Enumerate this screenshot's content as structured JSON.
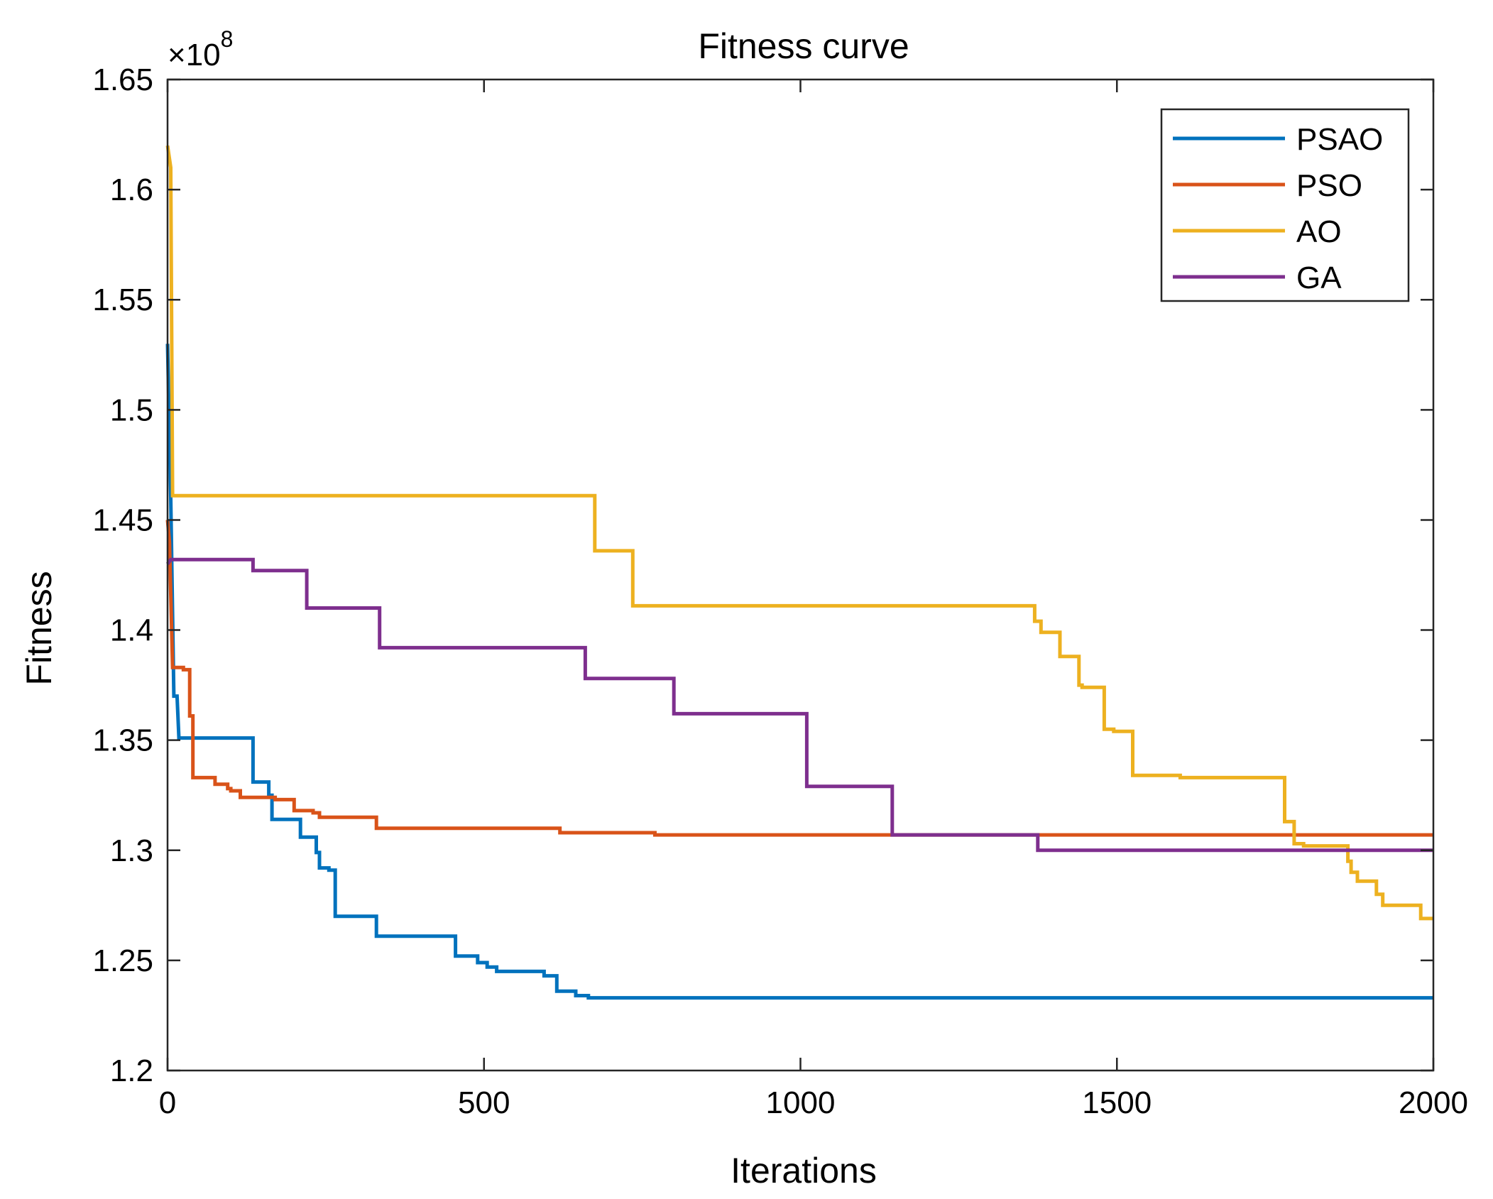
{
  "chart_data": {
    "type": "line",
    "title": "Fitness curve",
    "xlabel": "Iterations",
    "ylabel": "Fitness",
    "xlim": [
      0,
      2000
    ],
    "ylim": [
      1.2,
      1.65
    ],
    "y_multiplier": "×10",
    "y_exponent": "8",
    "xticks": [
      0,
      500,
      1000,
      1500,
      2000
    ],
    "xtick_labels": [
      "0",
      "500",
      "1000",
      "1500",
      "2000"
    ],
    "yticks": [
      1.2,
      1.25,
      1.3,
      1.35,
      1.4,
      1.45,
      1.5,
      1.55,
      1.6,
      1.65
    ],
    "ytick_labels": [
      "1.2",
      "1.25",
      "1.3",
      "1.35",
      "1.4",
      "1.45",
      "1.5",
      "1.55",
      "1.6",
      "1.65"
    ],
    "grid": false,
    "legend_position": "top-right",
    "series": [
      {
        "name": "PSAO",
        "color": "#0072BD",
        "points": [
          [
            0,
            1.53
          ],
          [
            5,
            1.46
          ],
          [
            10,
            1.37
          ],
          [
            15,
            1.37
          ],
          [
            18,
            1.351
          ],
          [
            135,
            1.351
          ],
          [
            135,
            1.331
          ],
          [
            160,
            1.331
          ],
          [
            160,
            1.325
          ],
          [
            165,
            1.325
          ],
          [
            165,
            1.314
          ],
          [
            210,
            1.314
          ],
          [
            210,
            1.306
          ],
          [
            235,
            1.306
          ],
          [
            235,
            1.299
          ],
          [
            240,
            1.299
          ],
          [
            240,
            1.292
          ],
          [
            255,
            1.292
          ],
          [
            255,
            1.291
          ],
          [
            265,
            1.291
          ],
          [
            265,
            1.27
          ],
          [
            330,
            1.27
          ],
          [
            330,
            1.261
          ],
          [
            455,
            1.261
          ],
          [
            455,
            1.252
          ],
          [
            490,
            1.252
          ],
          [
            490,
            1.249
          ],
          [
            505,
            1.249
          ],
          [
            505,
            1.247
          ],
          [
            520,
            1.247
          ],
          [
            520,
            1.245
          ],
          [
            595,
            1.245
          ],
          [
            595,
            1.243
          ],
          [
            615,
            1.243
          ],
          [
            615,
            1.236
          ],
          [
            645,
            1.236
          ],
          [
            645,
            1.234
          ],
          [
            665,
            1.234
          ],
          [
            665,
            1.233
          ],
          [
            2000,
            1.233
          ]
        ]
      },
      {
        "name": "PSO",
        "color": "#D95319",
        "points": [
          [
            0,
            1.45
          ],
          [
            3,
            1.44
          ],
          [
            8,
            1.383
          ],
          [
            25,
            1.383
          ],
          [
            25,
            1.382
          ],
          [
            35,
            1.382
          ],
          [
            35,
            1.361
          ],
          [
            40,
            1.361
          ],
          [
            40,
            1.333
          ],
          [
            75,
            1.333
          ],
          [
            75,
            1.33
          ],
          [
            95,
            1.33
          ],
          [
            95,
            1.328
          ],
          [
            100,
            1.328
          ],
          [
            100,
            1.327
          ],
          [
            115,
            1.327
          ],
          [
            115,
            1.324
          ],
          [
            170,
            1.324
          ],
          [
            170,
            1.323
          ],
          [
            200,
            1.323
          ],
          [
            200,
            1.318
          ],
          [
            230,
            1.318
          ],
          [
            230,
            1.317
          ],
          [
            240,
            1.317
          ],
          [
            240,
            1.315
          ],
          [
            330,
            1.315
          ],
          [
            330,
            1.31
          ],
          [
            620,
            1.31
          ],
          [
            620,
            1.308
          ],
          [
            770,
            1.308
          ],
          [
            770,
            1.307
          ],
          [
            2000,
            1.307
          ]
        ]
      },
      {
        "name": "AO",
        "color": "#EDB120",
        "points": [
          [
            0,
            1.62
          ],
          [
            5,
            1.61
          ],
          [
            8,
            1.461
          ],
          [
            675,
            1.461
          ],
          [
            675,
            1.436
          ],
          [
            735,
            1.436
          ],
          [
            735,
            1.411
          ],
          [
            1370,
            1.411
          ],
          [
            1370,
            1.404
          ],
          [
            1380,
            1.404
          ],
          [
            1380,
            1.399
          ],
          [
            1410,
            1.399
          ],
          [
            1410,
            1.388
          ],
          [
            1440,
            1.388
          ],
          [
            1440,
            1.375
          ],
          [
            1445,
            1.375
          ],
          [
            1445,
            1.374
          ],
          [
            1480,
            1.374
          ],
          [
            1480,
            1.355
          ],
          [
            1495,
            1.355
          ],
          [
            1495,
            1.354
          ],
          [
            1525,
            1.354
          ],
          [
            1525,
            1.334
          ],
          [
            1600,
            1.334
          ],
          [
            1600,
            1.333
          ],
          [
            1765,
            1.333
          ],
          [
            1765,
            1.313
          ],
          [
            1780,
            1.313
          ],
          [
            1780,
            1.303
          ],
          [
            1795,
            1.303
          ],
          [
            1795,
            1.302
          ],
          [
            1865,
            1.302
          ],
          [
            1865,
            1.295
          ],
          [
            1870,
            1.295
          ],
          [
            1870,
            1.29
          ],
          [
            1880,
            1.29
          ],
          [
            1880,
            1.286
          ],
          [
            1910,
            1.286
          ],
          [
            1910,
            1.28
          ],
          [
            1920,
            1.28
          ],
          [
            1920,
            1.275
          ],
          [
            1980,
            1.275
          ],
          [
            1980,
            1.269
          ],
          [
            2000,
            1.269
          ]
        ]
      },
      {
        "name": "GA",
        "color": "#7E2F8E",
        "points": [
          [
            0,
            1.43
          ],
          [
            5,
            1.432
          ],
          [
            135,
            1.432
          ],
          [
            135,
            1.427
          ],
          [
            220,
            1.427
          ],
          [
            220,
            1.41
          ],
          [
            335,
            1.41
          ],
          [
            335,
            1.392
          ],
          [
            660,
            1.392
          ],
          [
            660,
            1.378
          ],
          [
            800,
            1.378
          ],
          [
            800,
            1.362
          ],
          [
            1010,
            1.362
          ],
          [
            1010,
            1.329
          ],
          [
            1145,
            1.329
          ],
          [
            1145,
            1.307
          ],
          [
            1375,
            1.307
          ],
          [
            1375,
            1.3
          ],
          [
            2000,
            1.3
          ]
        ]
      }
    ]
  }
}
